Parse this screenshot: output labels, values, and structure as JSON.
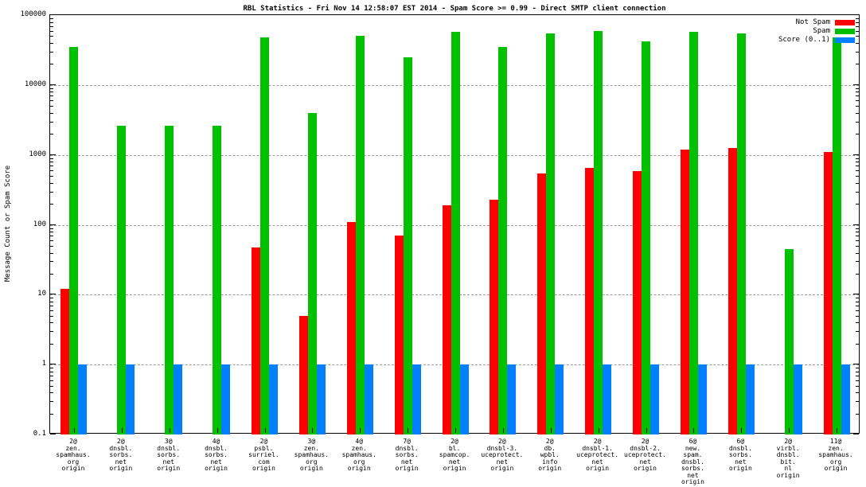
{
  "title": "RBL Statistics - Fri Nov 14 12:58:07 EST 2014 - Spam Score >= 0.99 - Direct SMTP client connection",
  "ylabel": "Message Count or Spam Score",
  "legend": [
    {
      "label": "Not Spam",
      "color": "#ff0000"
    },
    {
      "label": "Spam",
      "color": "#00c000"
    },
    {
      "label": "Score (0..1)",
      "color": "#0080ff"
    }
  ],
  "chart_data": {
    "type": "bar",
    "scale": "log",
    "title": "RBL Statistics - Fri Nov 14 12:58:07 EST 2014 - Spam Score >= 0.99 - Direct SMTP client connection",
    "xlabel": "",
    "ylabel": "Message Count or Spam Score",
    "ylim": [
      0.1,
      100000
    ],
    "yticks": [
      0.1,
      1,
      10,
      100,
      1000,
      10000,
      100000
    ],
    "grid": true,
    "legend_position": "top-right",
    "categories": [
      "2@\nzen.\nspamhaus.\norg\norigin",
      "2@\ndnsbl.\nsorbs.\nnet\norigin",
      "3@\ndnsbl.\nsorbs.\nnet\norigin",
      "4@\ndnsbl.\nsorbs.\nnet\norigin",
      "2@\npsbl.\nsurriel.\ncom\norigin",
      "3@\nzen.\nspamhaus.\norg\norigin",
      "4@\nzen.\nspamhaus.\norg\norigin",
      "7@\ndnsbl.\nsorbs.\nnet\norigin",
      "2@\nbl.\nspamcop.\nnet\norigin",
      "2@\ndnsbl-3.\nuceprotect.\nnet\norigin",
      "2@\ndb.\nwpbl.\ninfo\norigin",
      "2@\ndnsbl-1.\nuceprotect.\nnet\norigin",
      "2@\ndnsbl-2.\nuceprotect.\nnet\norigin",
      "6@\nnew.\nspam.\ndnsbl.\nsorbs.\nnet\norigin",
      "6@\ndnsbl.\nsorbs.\nnet\norigin",
      "2@\nvirbl.\ndnsbl.\nbit.\nnl\norigin",
      "11@\nzen.\nspamhaus.\norg\norigin"
    ],
    "series": [
      {
        "name": "Not Spam",
        "color": "#ff0000",
        "values": [
          12,
          null,
          null,
          null,
          48,
          5,
          110,
          70,
          190,
          230,
          550,
          650,
          580,
          1200,
          1250,
          null,
          1100
        ]
      },
      {
        "name": "Spam",
        "color": "#00c000",
        "values": [
          35000,
          2600,
          2600,
          2600,
          48000,
          4000,
          50000,
          25000,
          58000,
          35000,
          55000,
          60000,
          42000,
          58000,
          55000,
          45,
          48000
        ]
      },
      {
        "name": "Score (0..1)",
        "color": "#0080ff",
        "values": [
          1,
          1,
          1,
          1,
          1,
          1,
          1,
          1,
          1,
          1,
          1,
          1,
          1,
          1,
          1,
          1,
          1
        ]
      }
    ]
  }
}
